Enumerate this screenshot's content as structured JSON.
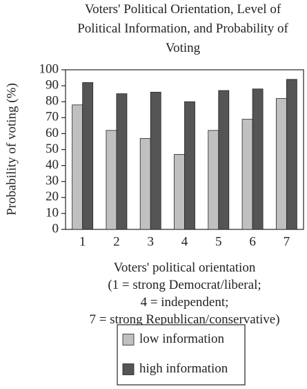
{
  "chart_data": {
    "type": "bar",
    "title": "Voters' Political Orientation, Level of Political Information, and Probability of Voting",
    "x_label": "Voters' political orientation\n(1 = strong Democrat/liberal;\n4 = independent;\n7 = strong Republican/conservative)",
    "y_label": "Probability of voting (%)",
    "categories": [
      "1",
      "2",
      "3",
      "4",
      "5",
      "6",
      "7"
    ],
    "series": [
      {
        "name": "low information",
        "color": "#c0c0c0",
        "values": [
          78,
          62,
          57,
          47,
          62,
          69,
          82
        ]
      },
      {
        "name": "high information",
        "color": "#555555",
        "values": [
          92,
          85,
          86,
          80,
          87,
          88,
          94
        ]
      }
    ],
    "ylim": [
      0,
      100
    ],
    "yticks": [
      0,
      10,
      20,
      30,
      40,
      50,
      60,
      70,
      80,
      90,
      100
    ],
    "grid": false,
    "legend": "bottom"
  }
}
